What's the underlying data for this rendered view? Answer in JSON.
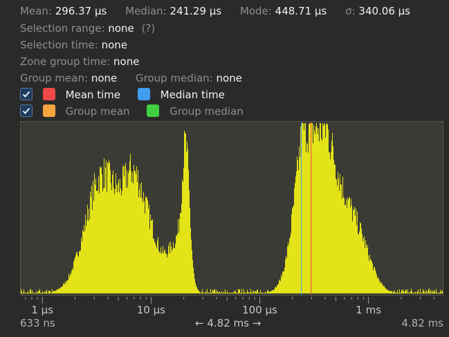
{
  "stats": {
    "mean_label": "Mean:",
    "mean_value": "296.37 μs",
    "median_label": "Median:",
    "median_value": "241.29 μs",
    "mode_label": "Mode:",
    "mode_value": "448.71 μs",
    "sigma_label": "σ:",
    "sigma_value": "340.06 μs"
  },
  "selection_range": {
    "label": "Selection range:",
    "value": "none",
    "help": "(?)"
  },
  "selection_time": {
    "label": "Selection time:",
    "value": "none"
  },
  "zone_group_time": {
    "label": "Zone group time:",
    "value": "none"
  },
  "group": {
    "mean_label": "Group mean:",
    "mean_value": "none",
    "median_label": "Group median:",
    "median_value": "none"
  },
  "legend": {
    "mean_time": {
      "label": "Mean time",
      "color": "#f04848"
    },
    "median_time": {
      "label": "Median time",
      "color": "#3f9df0"
    },
    "group_mean": {
      "label": "Group mean",
      "color": "#f5a540"
    },
    "group_median": {
      "label": "Group median",
      "color": "#40d040"
    }
  },
  "histogram": {
    "bar_color": "#e3e317",
    "x_min_us": 0.633,
    "x_max_us": 4820,
    "mean_us": 296.37,
    "median_us": 241.29
  },
  "axis": {
    "ticks": [
      {
        "value_us": 1,
        "label": "1 μs"
      },
      {
        "value_us": 10,
        "label": "10 μs"
      },
      {
        "value_us": 100,
        "label": "100 μs"
      },
      {
        "value_us": 1000,
        "label": "1 ms"
      }
    ],
    "left_label": "633 ns",
    "right_label": "4.82 ms",
    "range_label": "4.82 ms"
  }
}
